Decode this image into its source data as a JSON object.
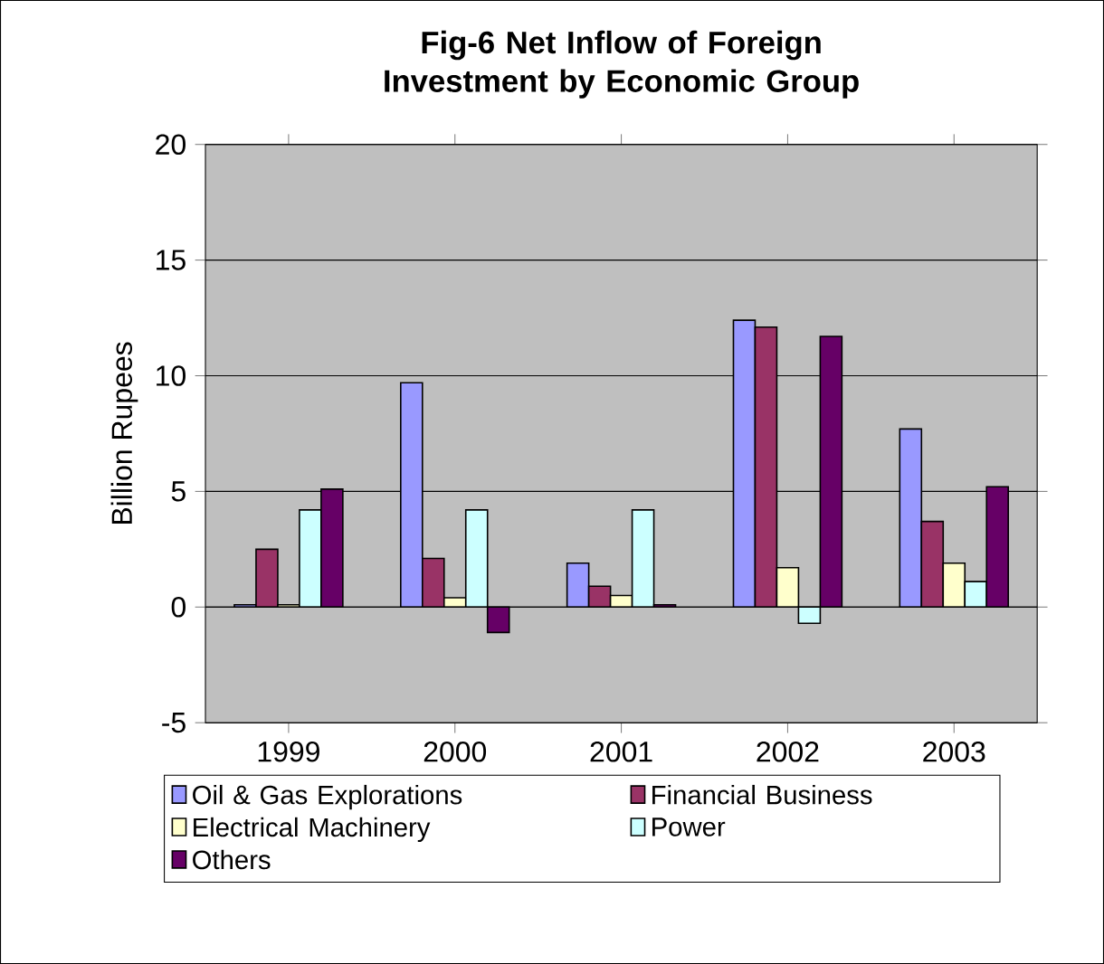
{
  "chart_data": {
    "type": "bar",
    "title": "Fig-6 Net Inflow of Foreign Investment by Economic Group",
    "ylabel": "Billion Rupees",
    "categories": [
      "1999",
      "2000",
      "2001",
      "2002",
      "2003"
    ],
    "series": [
      {
        "name": "Oil & Gas Explorations",
        "color": "#9999ff",
        "values": [
          0.1,
          9.7,
          1.9,
          12.4,
          7.7
        ]
      },
      {
        "name": "Financial Business",
        "color": "#993366",
        "values": [
          2.5,
          2.1,
          0.9,
          12.1,
          3.7
        ]
      },
      {
        "name": "Electrical Machinery",
        "color": "#ffffcc",
        "values": [
          0.1,
          0.4,
          0.5,
          1.7,
          1.9
        ]
      },
      {
        "name": "Power",
        "color": "#ccffff",
        "values": [
          4.2,
          4.2,
          4.2,
          -0.7,
          1.1
        ]
      },
      {
        "name": "Others",
        "color": "#660066",
        "values": [
          5.1,
          -1.1,
          0.1,
          11.7,
          5.2
        ]
      }
    ],
    "ylim": [
      -5,
      20
    ],
    "yticks": [
      -5,
      0,
      5,
      10,
      15,
      20
    ],
    "grid": "y",
    "legend": "bottom"
  }
}
